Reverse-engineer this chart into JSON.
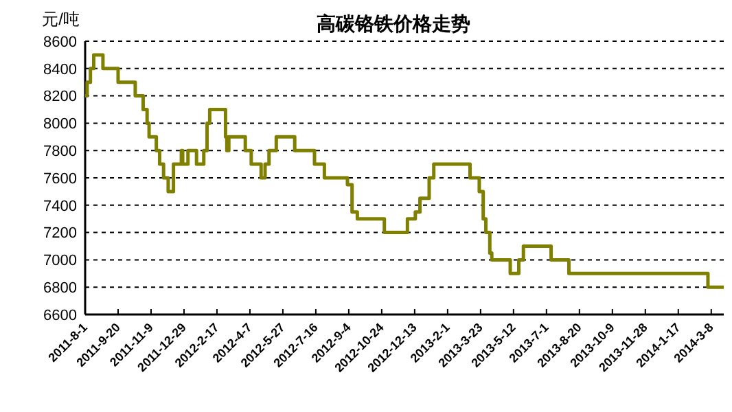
{
  "chart_data": {
    "type": "step",
    "title": "高碳铬铁价格走势",
    "ylabel": "元/吨",
    "x": [
      "2011-08-01",
      "2011-08-04",
      "2011-08-09",
      "2011-08-14",
      "2011-08-28",
      "2011-09-20",
      "2011-10-16",
      "2011-10-28",
      "2011-11-03",
      "2011-11-06",
      "2011-11-17",
      "2011-11-22",
      "2011-11-28",
      "2011-12-05",
      "2011-12-13",
      "2011-12-25",
      "2011-12-27",
      "2012-01-04",
      "2012-01-17",
      "2012-01-28",
      "2012-02-02",
      "2012-02-06",
      "2012-03-01",
      "2012-03-03",
      "2012-03-06",
      "2012-03-31",
      "2012-04-09",
      "2012-04-24",
      "2012-04-30",
      "2012-05-06",
      "2012-05-17",
      "2012-06-14",
      "2012-07-14",
      "2012-07-29",
      "2012-09-02",
      "2012-09-09",
      "2012-09-17",
      "2012-10-28",
      "2012-12-02",
      "2012-12-14",
      "2012-12-21",
      "2013-01-04",
      "2013-01-11",
      "2013-03-07",
      "2013-03-21",
      "2013-03-27",
      "2013-03-31",
      "2013-04-06",
      "2013-04-09",
      "2013-05-07",
      "2013-05-20",
      "2013-05-27",
      "2013-07-08",
      "2013-08-04",
      "2014-03-03",
      "2014-03-27"
    ],
    "series": [
      {
        "color": "#808000",
        "values": [
          8200,
          8300,
          8400,
          8500,
          8400,
          8300,
          8200,
          8100,
          8000,
          7900,
          7800,
          7700,
          7600,
          7500,
          7700,
          7800,
          7700,
          7800,
          7700,
          7800,
          8000,
          8100,
          7900,
          7800,
          7900,
          7800,
          7700,
          7600,
          7700,
          7800,
          7900,
          7800,
          7700,
          7600,
          7550,
          7350,
          7300,
          7200,
          7300,
          7350,
          7450,
          7600,
          7700,
          7600,
          7500,
          7300,
          7200,
          7050,
          7000,
          6900,
          7000,
          7100,
          7000,
          6900,
          6800,
          6800
        ]
      }
    ],
    "xlim": [
      "2011-08-01",
      "2014-03-27"
    ],
    "xticks": [
      {
        "value": "2011-08-01",
        "label": "2011-8-1"
      },
      {
        "value": "2011-09-20",
        "label": "2011-9-20"
      },
      {
        "value": "2011-11-09",
        "label": "2011-11-9"
      },
      {
        "value": "2011-12-29",
        "label": "2011-12-29"
      },
      {
        "value": "2012-02-17",
        "label": "2012-2-17"
      },
      {
        "value": "2012-04-07",
        "label": "2012-4-7"
      },
      {
        "value": "2012-05-27",
        "label": "2012-5-27"
      },
      {
        "value": "2012-07-16",
        "label": "2012-7-16"
      },
      {
        "value": "2012-09-04",
        "label": "2012-9-4"
      },
      {
        "value": "2012-10-24",
        "label": "2012-10-24"
      },
      {
        "value": "2012-12-13",
        "label": "2012-12-13"
      },
      {
        "value": "2013-02-01",
        "label": "2013-2-1"
      },
      {
        "value": "2013-03-23",
        "label": "2013-3-23"
      },
      {
        "value": "2013-05-12",
        "label": "2013-5-12"
      },
      {
        "value": "2013-07-01",
        "label": "2013-7-1"
      },
      {
        "value": "2013-08-20",
        "label": "2013-8-20"
      },
      {
        "value": "2013-10-09",
        "label": "2013-10-9"
      },
      {
        "value": "2013-11-28",
        "label": "2013-11-28"
      },
      {
        "value": "2014-01-17",
        "label": "2014-1-17"
      },
      {
        "value": "2014-03-08",
        "label": "2014-3-8"
      }
    ],
    "ylim": [
      6600,
      8600
    ],
    "yticks": [
      6600,
      6800,
      7000,
      7200,
      7400,
      7600,
      7800,
      8000,
      8200,
      8400,
      8600
    ],
    "grid": "y",
    "line_style": "solid"
  }
}
